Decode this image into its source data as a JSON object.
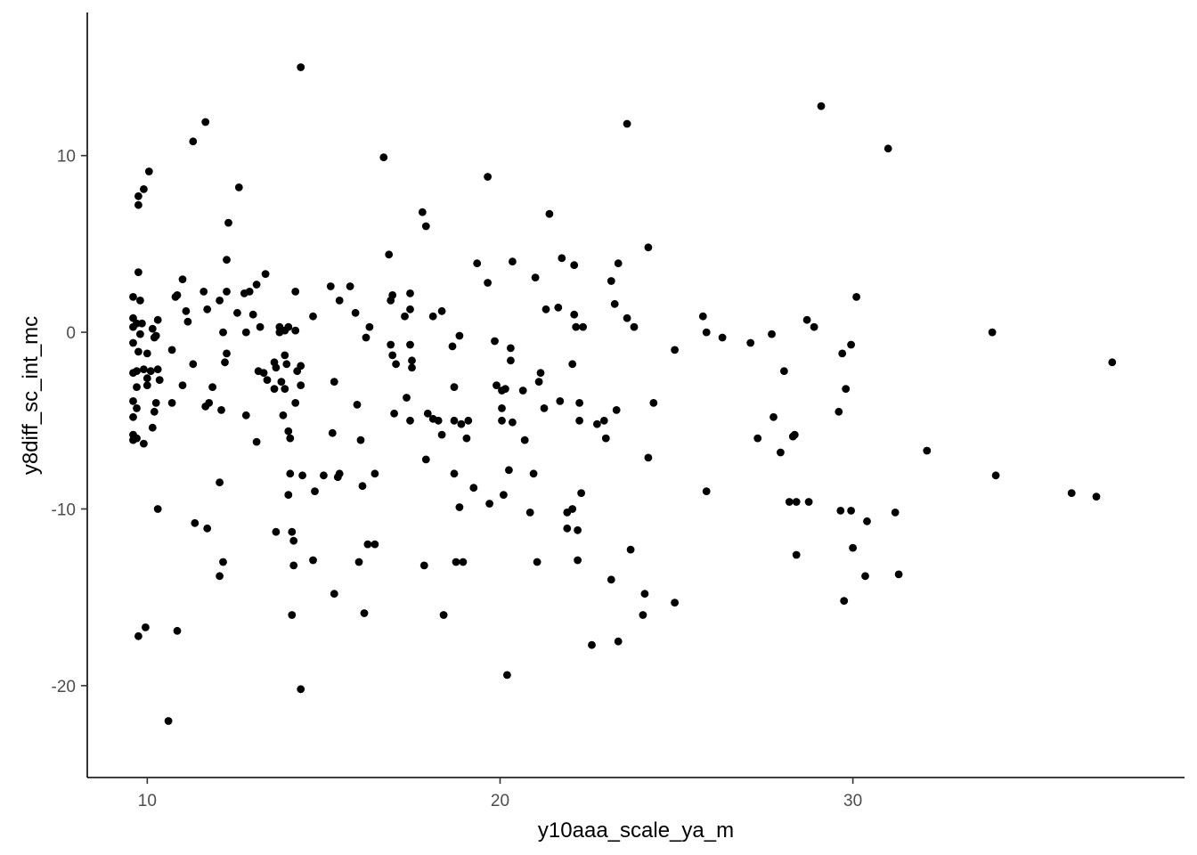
{
  "chart_data": {
    "type": "scatter",
    "title": "",
    "xlabel": "y10aaa_scale_ya_m",
    "ylabel": "y8diff_sc_int_mc",
    "xlim": [
      8.3,
      39.4
    ],
    "ylim": [
      -25.2,
      18.1
    ],
    "x_ticks": [
      10,
      20,
      30
    ],
    "y_ticks": [
      10,
      0,
      -10,
      -20
    ],
    "grid": false,
    "legend": "none",
    "point_color": "#000000",
    "points": [
      [
        9.6,
        2.0
      ],
      [
        9.6,
        0.8
      ],
      [
        9.6,
        0.3
      ],
      [
        9.6,
        -0.6
      ],
      [
        9.6,
        -2.3
      ],
      [
        9.6,
        -3.9
      ],
      [
        9.6,
        -4.8
      ],
      [
        9.6,
        -5.8
      ],
      [
        9.6,
        -6.1
      ],
      [
        9.7,
        0.5
      ],
      [
        9.7,
        -3.1
      ],
      [
        9.7,
        -4.3
      ],
      [
        9.7,
        -6.0
      ],
      [
        9.7,
        -2.2
      ],
      [
        9.75,
        3.4
      ],
      [
        9.75,
        7.7
      ],
      [
        9.75,
        7.2
      ],
      [
        9.75,
        -1.1
      ],
      [
        9.75,
        -17.2
      ],
      [
        9.8,
        1.8
      ],
      [
        9.8,
        -0.1
      ],
      [
        9.85,
        0.5
      ],
      [
        9.9,
        8.1
      ],
      [
        9.9,
        -2.1
      ],
      [
        9.9,
        -6.3
      ],
      [
        9.95,
        -16.7
      ],
      [
        10.0,
        -1.2
      ],
      [
        10.0,
        -2.6
      ],
      [
        10.0,
        -3.0
      ],
      [
        10.05,
        9.1
      ],
      [
        10.1,
        -2.2
      ],
      [
        10.15,
        0.2
      ],
      [
        10.15,
        -5.4
      ],
      [
        10.2,
        -0.3
      ],
      [
        10.2,
        -4.5
      ],
      [
        10.25,
        -0.2
      ],
      [
        10.25,
        -4.0
      ],
      [
        10.3,
        0.7
      ],
      [
        10.3,
        -10.0
      ],
      [
        10.3,
        -2.1
      ],
      [
        10.35,
        -2.7
      ],
      [
        10.6,
        -22.0
      ],
      [
        10.7,
        -1.0
      ],
      [
        10.7,
        -4.0
      ],
      [
        10.8,
        2.0
      ],
      [
        10.85,
        2.1
      ],
      [
        10.85,
        -16.9
      ],
      [
        11.0,
        3.0
      ],
      [
        11.0,
        -3.0
      ],
      [
        11.1,
        1.2
      ],
      [
        11.15,
        0.6
      ],
      [
        11.3,
        -1.8
      ],
      [
        11.3,
        10.8
      ],
      [
        11.35,
        -10.8
      ],
      [
        11.6,
        2.3
      ],
      [
        11.65,
        11.9
      ],
      [
        11.65,
        -4.2
      ],
      [
        11.7,
        1.3
      ],
      [
        11.7,
        -11.1
      ],
      [
        11.75,
        -4.0
      ],
      [
        11.85,
        -3.1
      ],
      [
        12.05,
        1.8
      ],
      [
        12.05,
        -8.5
      ],
      [
        12.1,
        -4.4
      ],
      [
        12.05,
        -13.8
      ],
      [
        12.15,
        0.0
      ],
      [
        12.15,
        -13.0
      ],
      [
        12.2,
        -1.7
      ],
      [
        12.25,
        4.1
      ],
      [
        12.25,
        -1.2
      ],
      [
        12.25,
        2.3
      ],
      [
        12.3,
        6.2
      ],
      [
        12.55,
        1.1
      ],
      [
        12.6,
        8.2
      ],
      [
        12.75,
        2.2
      ],
      [
        12.8,
        0.0
      ],
      [
        12.8,
        -4.7
      ],
      [
        12.9,
        2.3
      ],
      [
        13.0,
        1.0
      ],
      [
        13.1,
        2.7
      ],
      [
        13.1,
        -6.2
      ],
      [
        13.15,
        -2.2
      ],
      [
        13.2,
        0.3
      ],
      [
        13.3,
        -2.3
      ],
      [
        13.35,
        3.3
      ],
      [
        13.4,
        -2.7
      ],
      [
        13.6,
        -1.7
      ],
      [
        13.6,
        -3.2
      ],
      [
        13.65,
        -2.0
      ],
      [
        13.65,
        -11.3
      ],
      [
        13.75,
        0.3
      ],
      [
        13.75,
        0.0
      ],
      [
        13.8,
        -2.8
      ],
      [
        13.85,
        -4.7
      ],
      [
        13.9,
        -3.2
      ],
      [
        13.9,
        0.1
      ],
      [
        13.9,
        -1.3
      ],
      [
        13.95,
        -1.8
      ],
      [
        14.0,
        0.3
      ],
      [
        14.0,
        -5.6
      ],
      [
        14.0,
        -9.2
      ],
      [
        14.05,
        -6.0
      ],
      [
        14.05,
        -8.0
      ],
      [
        14.1,
        -11.3
      ],
      [
        14.1,
        -16.0
      ],
      [
        14.15,
        -13.2
      ],
      [
        14.15,
        -11.8
      ],
      [
        14.2,
        2.3
      ],
      [
        14.2,
        0.1
      ],
      [
        14.2,
        -4.0
      ],
      [
        14.25,
        -2.2
      ],
      [
        14.35,
        -1.9
      ],
      [
        14.35,
        -3.0
      ],
      [
        14.4,
        -8.1
      ],
      [
        14.35,
        15.0
      ],
      [
        14.35,
        -20.2
      ],
      [
        14.7,
        0.9
      ],
      [
        14.7,
        -12.9
      ],
      [
        14.75,
        -9.0
      ],
      [
        15.0,
        -8.1
      ],
      [
        15.2,
        2.6
      ],
      [
        15.25,
        -5.7
      ],
      [
        15.3,
        -2.8
      ],
      [
        15.3,
        -14.8
      ],
      [
        15.4,
        -8.2
      ],
      [
        15.45,
        -8.0
      ],
      [
        15.45,
        1.8
      ],
      [
        15.75,
        2.6
      ],
      [
        15.9,
        1.1
      ],
      [
        15.95,
        -4.1
      ],
      [
        16.0,
        -13.0
      ],
      [
        16.05,
        -6.1
      ],
      [
        16.1,
        -8.7
      ],
      [
        16.15,
        -15.9
      ],
      [
        16.2,
        -0.3
      ],
      [
        16.25,
        -12.0
      ],
      [
        16.3,
        0.3
      ],
      [
        16.45,
        -12.0
      ],
      [
        16.45,
        -8.0
      ],
      [
        16.7,
        9.9
      ],
      [
        16.85,
        4.4
      ],
      [
        16.9,
        1.8
      ],
      [
        16.9,
        -0.7
      ],
      [
        16.95,
        2.1
      ],
      [
        16.95,
        -1.3
      ],
      [
        17.0,
        -4.6
      ],
      [
        17.05,
        -1.8
      ],
      [
        17.3,
        0.9
      ],
      [
        17.35,
        -3.7
      ],
      [
        17.45,
        2.2
      ],
      [
        17.45,
        -0.7
      ],
      [
        17.45,
        -5.0
      ],
      [
        17.45,
        1.3
      ],
      [
        17.5,
        -1.6
      ],
      [
        17.5,
        -2.0
      ],
      [
        17.8,
        6.8
      ],
      [
        17.9,
        6.0
      ],
      [
        17.9,
        -7.2
      ],
      [
        17.95,
        -4.6
      ],
      [
        17.85,
        -13.2
      ],
      [
        18.1,
        0.9
      ],
      [
        18.1,
        -4.9
      ],
      [
        18.25,
        -5.0
      ],
      [
        18.35,
        1.2
      ],
      [
        18.35,
        -5.8
      ],
      [
        18.4,
        -16.0
      ],
      [
        18.65,
        -0.8
      ],
      [
        18.7,
        -3.1
      ],
      [
        18.7,
        -5.0
      ],
      [
        18.7,
        -8.0
      ],
      [
        18.75,
        -13.0
      ],
      [
        18.85,
        -0.2
      ],
      [
        18.85,
        -9.9
      ],
      [
        18.9,
        -5.2
      ],
      [
        18.95,
        -13.0
      ],
      [
        19.05,
        -6.0
      ],
      [
        19.1,
        -5.0
      ],
      [
        19.25,
        -8.8
      ],
      [
        19.35,
        3.9
      ],
      [
        19.65,
        8.8
      ],
      [
        19.65,
        2.8
      ],
      [
        19.7,
        -9.7
      ],
      [
        19.85,
        -0.5
      ],
      [
        19.9,
        -3.0
      ],
      [
        20.05,
        -3.3
      ],
      [
        20.05,
        -4.3
      ],
      [
        20.05,
        -5.0
      ],
      [
        20.1,
        -9.2
      ],
      [
        20.15,
        -3.2
      ],
      [
        20.2,
        -19.4
      ],
      [
        20.25,
        -7.8
      ],
      [
        20.3,
        -0.9
      ],
      [
        20.3,
        -1.6
      ],
      [
        20.35,
        4.0
      ],
      [
        20.35,
        -5.1
      ],
      [
        20.65,
        -3.3
      ],
      [
        20.7,
        -6.1
      ],
      [
        20.85,
        -10.2
      ],
      [
        20.95,
        -8.0
      ],
      [
        21.0,
        3.1
      ],
      [
        21.05,
        -13.0
      ],
      [
        21.1,
        -2.8
      ],
      [
        21.15,
        -2.3
      ],
      [
        21.25,
        -4.3
      ],
      [
        21.3,
        1.3
      ],
      [
        21.4,
        6.7
      ],
      [
        21.65,
        1.4
      ],
      [
        21.7,
        -3.9
      ],
      [
        21.75,
        4.2
      ],
      [
        21.9,
        -10.2
      ],
      [
        21.9,
        -11.1
      ],
      [
        22.05,
        -1.8
      ],
      [
        22.05,
        -10.0
      ],
      [
        22.1,
        3.8
      ],
      [
        22.1,
        1.0
      ],
      [
        22.15,
        0.3
      ],
      [
        22.2,
        -12.9
      ],
      [
        22.2,
        -11.2
      ],
      [
        22.25,
        -4.0
      ],
      [
        22.25,
        -5.0
      ],
      [
        22.3,
        -9.1
      ],
      [
        22.35,
        0.3
      ],
      [
        22.6,
        -17.7
      ],
      [
        22.75,
        -5.2
      ],
      [
        22.95,
        -5.0
      ],
      [
        23.0,
        -6.0
      ],
      [
        23.15,
        2.9
      ],
      [
        23.15,
        -14.0
      ],
      [
        23.25,
        1.6
      ],
      [
        23.3,
        -4.4
      ],
      [
        23.35,
        3.9
      ],
      [
        23.35,
        -17.5
      ],
      [
        23.6,
        11.8
      ],
      [
        23.6,
        0.8
      ],
      [
        23.7,
        -12.3
      ],
      [
        23.8,
        0.3
      ],
      [
        24.05,
        -16.0
      ],
      [
        24.1,
        -14.8
      ],
      [
        24.2,
        4.8
      ],
      [
        24.2,
        -7.1
      ],
      [
        24.35,
        -4.0
      ],
      [
        24.95,
        -1.0
      ],
      [
        24.95,
        -15.3
      ],
      [
        25.75,
        0.9
      ],
      [
        25.85,
        0.0
      ],
      [
        25.85,
        -9.0
      ],
      [
        26.3,
        -0.3
      ],
      [
        27.1,
        -0.6
      ],
      [
        27.3,
        -6.0
      ],
      [
        27.7,
        -0.1
      ],
      [
        27.75,
        -4.8
      ],
      [
        27.95,
        -6.8
      ],
      [
        28.05,
        -2.2
      ],
      [
        28.2,
        -9.6
      ],
      [
        28.3,
        -5.9
      ],
      [
        28.35,
        -5.8
      ],
      [
        28.4,
        -9.6
      ],
      [
        28.4,
        -12.6
      ],
      [
        28.7,
        0.7
      ],
      [
        28.75,
        -9.6
      ],
      [
        28.9,
        0.3
      ],
      [
        29.1,
        12.8
      ],
      [
        29.6,
        -4.5
      ],
      [
        29.65,
        -10.1
      ],
      [
        29.7,
        -1.2
      ],
      [
        29.75,
        -15.2
      ],
      [
        29.8,
        -3.2
      ],
      [
        29.95,
        -10.1
      ],
      [
        29.95,
        -0.7
      ],
      [
        30.0,
        -12.2
      ],
      [
        30.1,
        2.0
      ],
      [
        30.35,
        -13.8
      ],
      [
        30.4,
        -10.7
      ],
      [
        31.0,
        10.4
      ],
      [
        31.2,
        -10.2
      ],
      [
        31.3,
        -13.7
      ],
      [
        32.1,
        -6.7
      ],
      [
        33.95,
        0.0
      ],
      [
        34.05,
        -8.1
      ],
      [
        36.2,
        -9.1
      ],
      [
        36.9,
        -9.3
      ],
      [
        37.35,
        -1.7
      ]
    ]
  }
}
